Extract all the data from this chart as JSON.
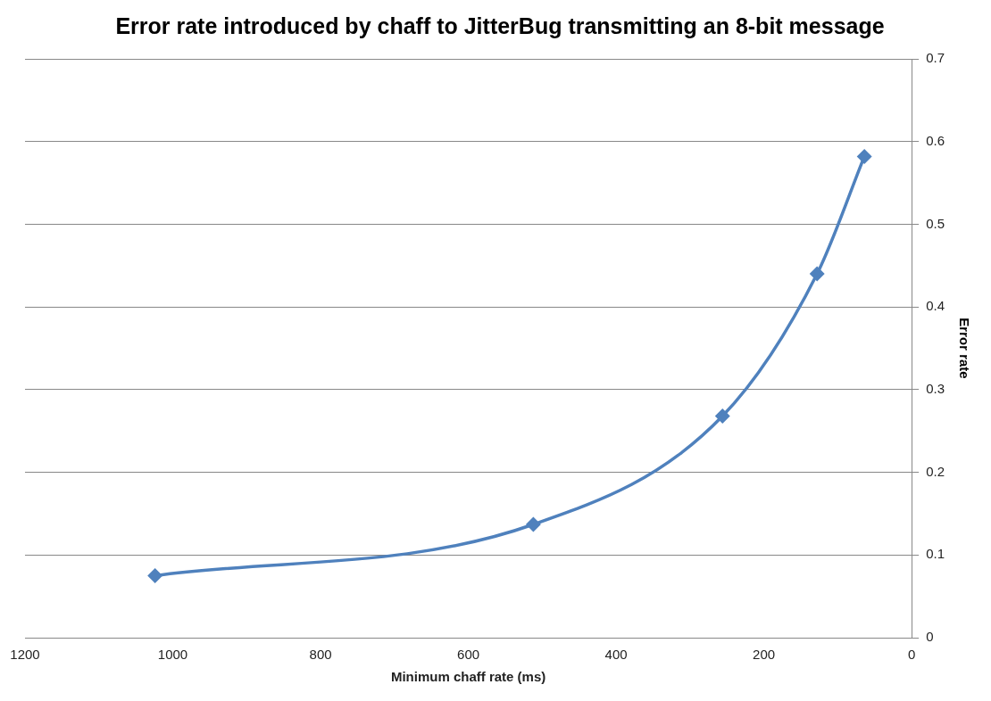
{
  "chart_data": {
    "type": "line",
    "title": "Error rate introduced by chaff to JitterBug transmitting an 8-bit message",
    "xlabel": "Minimum chaff rate (ms)",
    "ylabel": "Error rate",
    "x": [
      1024,
      512,
      256,
      128,
      64
    ],
    "series": [
      {
        "color": "#4f81bd",
        "values": [
          0.075,
          0.137,
          0.268,
          0.44,
          0.582
        ]
      }
    ],
    "xlim": [
      1200,
      0
    ],
    "xticks": [
      1200,
      1000,
      800,
      600,
      400,
      200,
      0
    ],
    "ylim": [
      0,
      0.7
    ],
    "yticks": [
      0,
      0.1,
      0.2,
      0.3,
      0.4,
      0.5,
      0.6,
      0.7
    ],
    "grid": "y",
    "legend": false,
    "marker": "diamond",
    "line_style": "solid"
  }
}
